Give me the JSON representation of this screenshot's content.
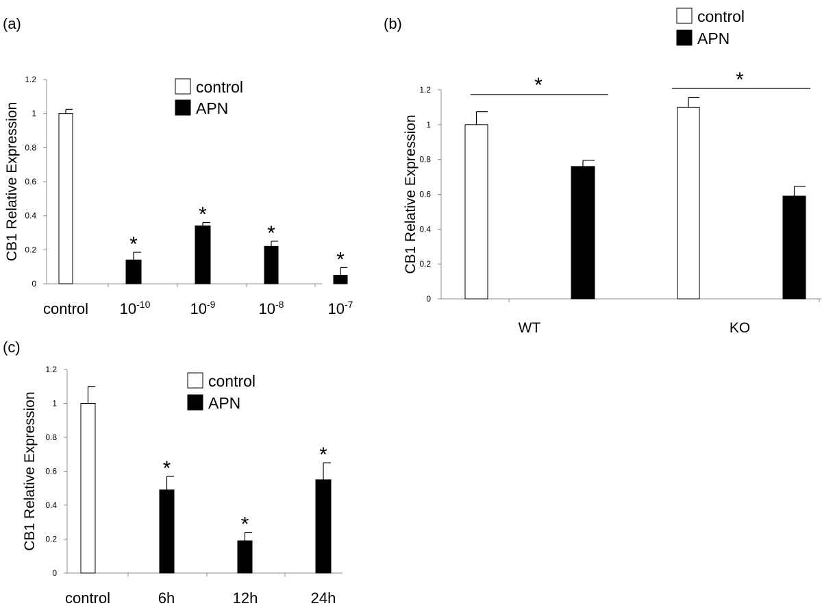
{
  "chart_data": [
    {
      "type": "bar",
      "panel": "(a)",
      "ylabel": "CB1 Relative Expression",
      "ylim": [
        0,
        1.2
      ],
      "yticks": [
        "0",
        "0.2",
        "0.4",
        "0.6",
        "0.8",
        "1",
        "1.2"
      ],
      "categories": [
        {
          "base": "control",
          "sup": ""
        },
        {
          "base": "10",
          "sup": "-10"
        },
        {
          "base": "10",
          "sup": "-9"
        },
        {
          "base": "10",
          "sup": "-8"
        },
        {
          "base": "10",
          "sup": "-7"
        }
      ],
      "legend": [
        "control",
        "APN"
      ],
      "series": [
        {
          "name": "control",
          "fill": "#ffffff",
          "values": [
            1.0,
            null,
            null,
            null,
            null
          ],
          "errors": [
            0.025,
            null,
            null,
            null,
            null
          ]
        },
        {
          "name": "APN",
          "fill": "#000000",
          "values": [
            null,
            0.14,
            0.34,
            0.22,
            0.05
          ],
          "errors": [
            null,
            0.045,
            0.02,
            0.03,
            0.045
          ]
        }
      ],
      "significance": [
        "",
        "*",
        "*",
        "*",
        "*"
      ],
      "grid": false,
      "legend_position": "top-right"
    },
    {
      "type": "bar",
      "panel": "(b)",
      "ylabel": "CB1 Relative Expression",
      "ylim": [
        0,
        1.2
      ],
      "yticks": [
        "0",
        "0.2",
        "0.4",
        "0.6",
        "0.8",
        "1",
        "1.2"
      ],
      "categories": [
        {
          "base": "WT",
          "sup": ""
        },
        {
          "base": "KO",
          "sup": ""
        }
      ],
      "legend": [
        "control",
        "APN"
      ],
      "series": [
        {
          "name": "control",
          "fill": "#ffffff",
          "values": [
            1.0,
            1.1
          ],
          "errors": [
            0.075,
            0.055
          ]
        },
        {
          "name": "APN",
          "fill": "#000000",
          "values": [
            0.76,
            0.59
          ],
          "errors": [
            0.035,
            0.055
          ]
        }
      ],
      "significance": [
        "*",
        "*"
      ],
      "grid": false,
      "legend_position": "top-right"
    },
    {
      "type": "bar",
      "panel": "(c)",
      "ylabel": "CB1 Relative Expression",
      "ylim": [
        0,
        1.2
      ],
      "yticks": [
        "0",
        "0.2",
        "0.4",
        "0.6",
        "0.8",
        "1",
        "1.2"
      ],
      "categories": [
        {
          "base": "control",
          "sup": ""
        },
        {
          "base": "6h",
          "sup": ""
        },
        {
          "base": "12h",
          "sup": ""
        },
        {
          "base": "24h",
          "sup": ""
        }
      ],
      "legend": [
        "control",
        "APN"
      ],
      "series": [
        {
          "name": "control",
          "fill": "#ffffff",
          "values": [
            1.0,
            null,
            null,
            null
          ],
          "errors": [
            0.1,
            null,
            null,
            null
          ]
        },
        {
          "name": "APN",
          "fill": "#000000",
          "values": [
            null,
            0.49,
            0.19,
            0.55
          ],
          "errors": [
            null,
            0.08,
            0.05,
            0.1
          ]
        }
      ],
      "significance": [
        "",
        "*",
        "*",
        "*"
      ],
      "grid": false,
      "legend_position": "top-right"
    }
  ]
}
